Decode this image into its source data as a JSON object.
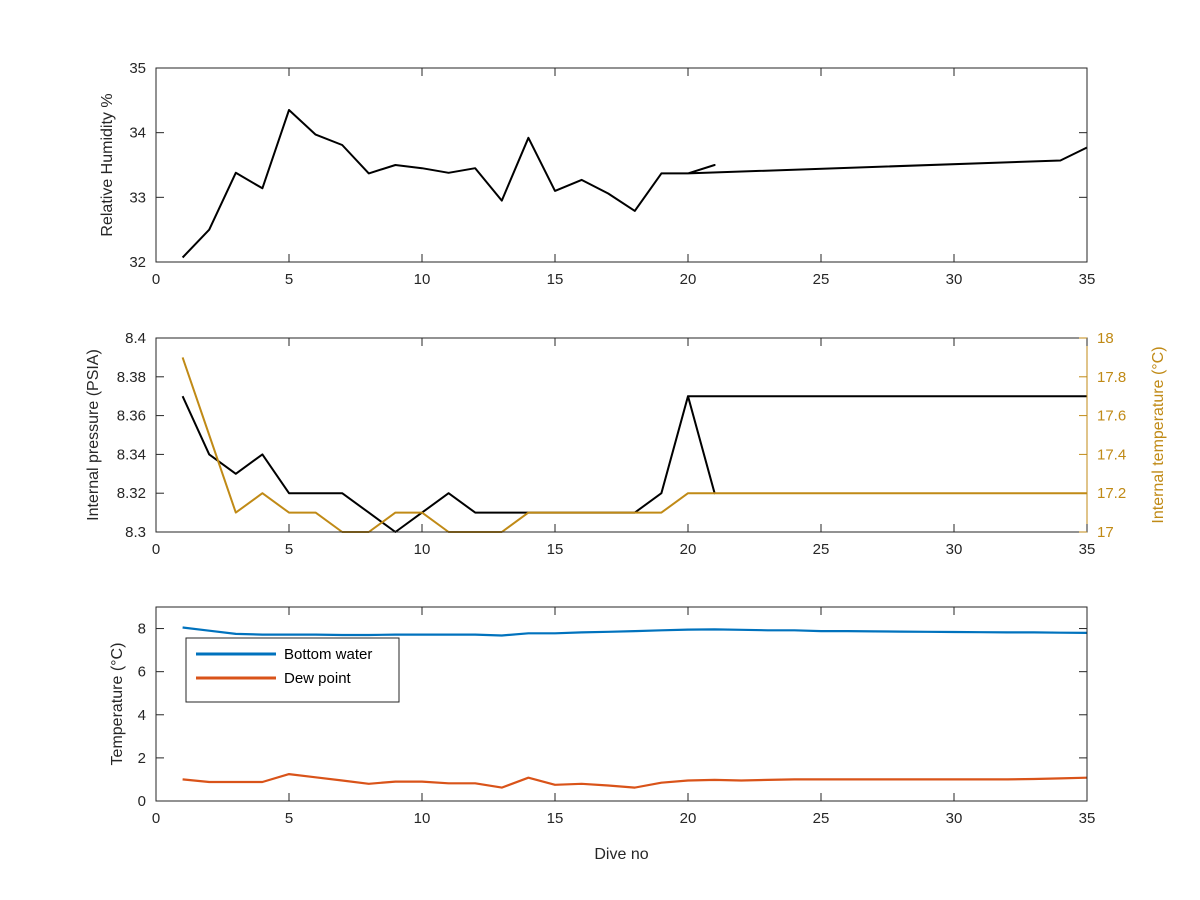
{
  "figure": {
    "xlabel": "Dive no"
  },
  "chart_data": [
    {
      "type": "line",
      "title": "",
      "xlabel": "",
      "ylabel": "Relative Humidity %",
      "xlim": [
        0,
        35
      ],
      "ylim": [
        32,
        35
      ],
      "xticks": [
        0,
        5,
        10,
        15,
        20,
        25,
        30,
        35
      ],
      "yticks": [
        32,
        33,
        34,
        35
      ],
      "ytick_labels": [
        "32",
        "33",
        "34",
        "35"
      ],
      "grid": false,
      "series": [
        {
          "color": "#000000",
          "x": [
            1,
            2,
            3,
            4,
            5,
            6,
            7,
            8,
            9,
            10,
            11,
            12,
            13,
            14,
            15,
            16,
            17,
            18,
            19,
            20,
            21,
            20,
            34,
            35
          ],
          "y": [
            32.07,
            32.5,
            33.38,
            33.14,
            34.35,
            33.97,
            33.81,
            33.37,
            33.5,
            33.45,
            33.38,
            33.45,
            32.95,
            33.92,
            33.1,
            33.27,
            33.06,
            32.79,
            33.37,
            33.37,
            33.5,
            33.37,
            33.57,
            33.77
          ]
        }
      ]
    },
    {
      "type": "line",
      "title": "",
      "xlabel": "",
      "ylabel": "Internal pressure (PSIA)",
      "ylabel_right": "Internal temperature (°C)",
      "xlim": [
        0,
        35
      ],
      "ylim": [
        8.3,
        8.4
      ],
      "ylim_right": [
        17,
        18
      ],
      "xticks": [
        0,
        5,
        10,
        15,
        20,
        25,
        30,
        35
      ],
      "yticks": [
        8.3,
        8.32,
        8.34,
        8.36,
        8.38,
        8.4
      ],
      "ytick_labels": [
        "8.3",
        "8.32",
        "8.34",
        "8.36",
        "8.38",
        "8.4"
      ],
      "yticks_right": [
        17,
        17.2,
        17.4,
        17.6,
        17.8,
        18
      ],
      "ytick_labels_right": [
        "17",
        "17.2",
        "17.4",
        "17.6",
        "17.8",
        "18"
      ],
      "right_axis_color": "#c08a16",
      "grid": false,
      "series": [
        {
          "axis": "left",
          "color": "#000000",
          "x": [
            1,
            2,
            3,
            4,
            5,
            6,
            7,
            8,
            9,
            10,
            11,
            12,
            13,
            14,
            15,
            16,
            17,
            18,
            19,
            20,
            21,
            20,
            35
          ],
          "y": [
            8.37,
            8.34,
            8.33,
            8.34,
            8.32,
            8.32,
            8.32,
            8.31,
            8.3,
            8.31,
            8.32,
            8.31,
            8.31,
            8.31,
            8.31,
            8.31,
            8.31,
            8.31,
            8.32,
            8.37,
            8.32,
            8.37,
            8.37
          ]
        },
        {
          "axis": "right",
          "color": "#c08a16",
          "x": [
            1,
            2,
            3,
            4,
            5,
            6,
            7,
            8,
            9,
            10,
            11,
            12,
            13,
            14,
            15,
            16,
            17,
            18,
            19,
            20,
            35
          ],
          "y": [
            17.9,
            17.5,
            17.1,
            17.2,
            17.1,
            17.1,
            17.0,
            17.0,
            17.1,
            17.1,
            17.0,
            17.0,
            17.0,
            17.1,
            17.1,
            17.1,
            17.1,
            17.1,
            17.1,
            17.2,
            17.2
          ]
        }
      ]
    },
    {
      "type": "line",
      "title": "",
      "xlabel": "Dive no",
      "ylabel": "Temperature (°C)",
      "xlim": [
        0,
        35
      ],
      "ylim": [
        0,
        9
      ],
      "xticks": [
        0,
        5,
        10,
        15,
        20,
        25,
        30,
        35
      ],
      "yticks": [
        0,
        2,
        4,
        6,
        8
      ],
      "ytick_labels": [
        "0",
        "2",
        "4",
        "6",
        "8"
      ],
      "grid": false,
      "legend": "top-left",
      "series": [
        {
          "name": "Bottom water",
          "color": "#0072bd",
          "x": [
            1,
            2,
            3,
            4,
            5,
            6,
            7,
            8,
            9,
            10,
            11,
            12,
            13,
            14,
            15,
            16,
            17,
            18,
            19,
            20,
            21,
            22,
            23,
            24,
            25,
            26,
            27,
            28,
            29,
            30,
            31,
            32,
            33,
            34,
            35
          ],
          "y": [
            8.05,
            7.9,
            7.75,
            7.72,
            7.72,
            7.72,
            7.7,
            7.7,
            7.72,
            7.72,
            7.72,
            7.72,
            7.68,
            7.78,
            7.78,
            7.82,
            7.85,
            7.88,
            7.92,
            7.95,
            7.96,
            7.94,
            7.92,
            7.92,
            7.88,
            7.88,
            7.87,
            7.86,
            7.85,
            7.84,
            7.83,
            7.82,
            7.82,
            7.81,
            7.8
          ]
        },
        {
          "name": "Dew point",
          "color": "#d95319",
          "x": [
            1,
            2,
            3,
            4,
            5,
            6,
            7,
            8,
            9,
            10,
            11,
            12,
            13,
            14,
            15,
            16,
            17,
            18,
            19,
            20,
            21,
            22,
            23,
            24,
            25,
            26,
            27,
            28,
            29,
            30,
            31,
            32,
            33,
            34,
            35
          ],
          "y": [
            1.0,
            0.88,
            0.88,
            0.88,
            1.25,
            1.1,
            0.95,
            0.8,
            0.9,
            0.9,
            0.82,
            0.82,
            0.62,
            1.08,
            0.75,
            0.8,
            0.72,
            0.62,
            0.85,
            0.95,
            0.98,
            0.95,
            0.98,
            1.0,
            1.0,
            1.0,
            1.0,
            1.0,
            1.0,
            1.0,
            1.0,
            1.0,
            1.02,
            1.05,
            1.08
          ]
        }
      ]
    }
  ]
}
